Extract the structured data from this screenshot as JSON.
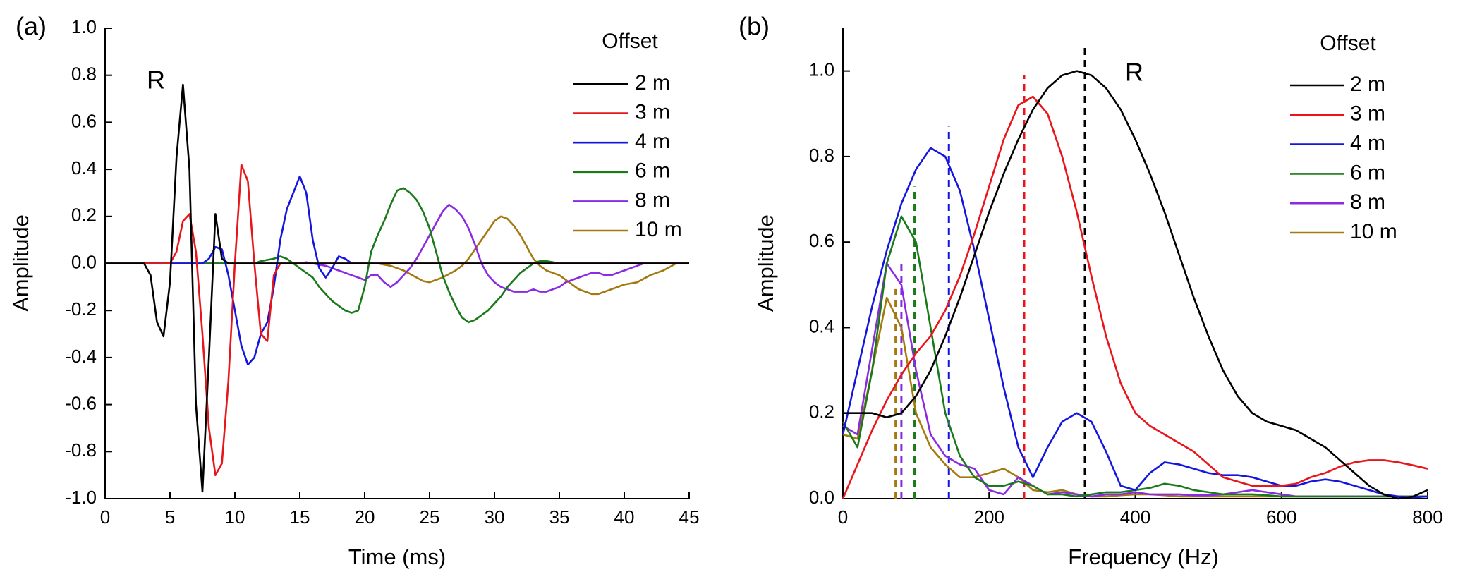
{
  "chart_data": [
    {
      "type": "line",
      "label": "(a)",
      "annotation": "R",
      "xlabel": "Time (ms)",
      "ylabel": "Amplitude",
      "xlim": [
        0,
        45
      ],
      "ylim": [
        -1,
        1
      ],
      "xticks": [
        0,
        5,
        10,
        15,
        20,
        25,
        30,
        35,
        40,
        45
      ],
      "yticks": [
        {
          "value": -1,
          "label": "-1.0"
        },
        -0.8,
        -0.6,
        -0.4,
        -0.2,
        {
          "value": 0,
          "label": "0.0"
        },
        0.2,
        0.4,
        0.6,
        0.8,
        {
          "value": 1,
          "label": "1.0"
        }
      ],
      "legend_title": "Offset",
      "legend": "upper right",
      "x": [
        0,
        0.5,
        1,
        1.5,
        2,
        2.5,
        3,
        3.5,
        4,
        4.5,
        5,
        5.5,
        6,
        6.5,
        7,
        7.5,
        8,
        8.5,
        9,
        9.5,
        10,
        10.5,
        11,
        11.5,
        12,
        12.5,
        13,
        13.5,
        14,
        14.5,
        15,
        15.5,
        16,
        16.5,
        17,
        17.5,
        18,
        18.5,
        19,
        19.5,
        20,
        20.5,
        21,
        21.5,
        22,
        22.5,
        23,
        23.5,
        24,
        24.5,
        25,
        25.5,
        26,
        26.5,
        27,
        27.5,
        28,
        28.5,
        29,
        29.5,
        30,
        30.5,
        31,
        31.5,
        32,
        32.5,
        33,
        33.5,
        34,
        34.5,
        35,
        35.5,
        36,
        36.5,
        37,
        37.5,
        38,
        38.5,
        39,
        39.5,
        40,
        40.5,
        41,
        41.5,
        42,
        42.5,
        43,
        43.5,
        44,
        44.5,
        45
      ],
      "series": [
        {
          "name": "2 m",
          "color": "#000000",
          "values": [
            0,
            0,
            0,
            0,
            0,
            0,
            0,
            -0.05,
            -0.25,
            -0.31,
            -0.08,
            0.45,
            0.76,
            0.4,
            -0.6,
            -0.97,
            -0.4,
            0.21,
            0.02,
            0,
            0,
            0,
            0,
            0,
            0,
            0,
            0,
            0,
            0,
            0,
            0,
            0,
            0,
            0,
            0,
            0,
            0,
            0,
            0,
            0,
            0,
            0,
            0,
            0,
            0,
            0,
            0,
            0,
            0,
            0,
            0,
            0,
            0,
            0,
            0,
            0,
            0,
            0,
            0,
            0,
            0,
            0,
            0,
            0,
            0,
            0,
            0,
            0,
            0,
            0,
            0,
            0,
            0,
            0,
            0,
            0,
            0,
            0,
            0,
            0,
            0,
            0,
            0,
            0,
            0,
            0,
            0,
            0,
            0,
            0,
            0
          ]
        },
        {
          "name": "3 m",
          "color": "#e8161b",
          "values": [
            0,
            0,
            0,
            0,
            0,
            0,
            0,
            0,
            0,
            0,
            0,
            0.05,
            0.18,
            0.21,
            0.05,
            -0.3,
            -0.7,
            -0.9,
            -0.85,
            -0.5,
            0,
            0.42,
            0.35,
            0,
            -0.3,
            -0.33,
            -0.05,
            0,
            0,
            0,
            0,
            0,
            0,
            0,
            0,
            0,
            0,
            0,
            0,
            0,
            0,
            0,
            0,
            0,
            0,
            0,
            0,
            0,
            0,
            0,
            0,
            0,
            0,
            0,
            0,
            0,
            0,
            0,
            0,
            0,
            0,
            0,
            0,
            0,
            0,
            0,
            0,
            0,
            0,
            0,
            0,
            0,
            0,
            0,
            0,
            0,
            0,
            0,
            0,
            0,
            0,
            0,
            0,
            0,
            0,
            0,
            0,
            0,
            0,
            0,
            0
          ]
        },
        {
          "name": "4 m",
          "color": "#1515e0",
          "values": [
            0,
            0,
            0,
            0,
            0,
            0,
            0,
            0,
            0,
            0,
            0,
            0,
            0,
            0,
            0,
            0,
            0.02,
            0.07,
            0.06,
            -0.05,
            -0.2,
            -0.35,
            -0.43,
            -0.4,
            -0.3,
            -0.25,
            -0.1,
            0.1,
            0.23,
            0.3,
            0.37,
            0.3,
            0.1,
            -0.02,
            -0.06,
            -0.02,
            0.03,
            0.02,
            0,
            0,
            0,
            0,
            0,
            0,
            0,
            0,
            0,
            0,
            0,
            0,
            0,
            0,
            0,
            0,
            0,
            0,
            0,
            0,
            0,
            0,
            0,
            0,
            0,
            0,
            0,
            0,
            0,
            0,
            0,
            0,
            0,
            0,
            0,
            0,
            0,
            0,
            0,
            0,
            0,
            0,
            0,
            0,
            0,
            0,
            0,
            0,
            0,
            0,
            0,
            0,
            0
          ]
        },
        {
          "name": "6 m",
          "color": "#1a7a1a",
          "values": [
            0,
            0,
            0,
            0,
            0,
            0,
            0,
            0,
            0,
            0,
            0,
            0,
            0,
            0,
            0,
            0,
            0,
            0,
            0,
            0,
            0,
            0,
            0,
            0,
            0.01,
            0.015,
            0.02,
            0.03,
            0.02,
            0,
            -0.02,
            -0.04,
            -0.06,
            -0.1,
            -0.13,
            -0.16,
            -0.18,
            -0.2,
            -0.21,
            -0.2,
            -0.1,
            0.05,
            0.12,
            0.18,
            0.25,
            0.31,
            0.32,
            0.3,
            0.27,
            0.22,
            0.15,
            0.05,
            -0.05,
            -0.12,
            -0.18,
            -0.23,
            -0.25,
            -0.24,
            -0.22,
            -0.2,
            -0.17,
            -0.14,
            -0.1,
            -0.07,
            -0.04,
            -0.02,
            0,
            0.01,
            0.01,
            0.005,
            0,
            0,
            0,
            0,
            0,
            0,
            0,
            0,
            0,
            0,
            0,
            0,
            0,
            0,
            0,
            0,
            0,
            0,
            0,
            0,
            0
          ]
        },
        {
          "name": "8 m",
          "color": "#8a2be2",
          "values": [
            0,
            0,
            0,
            0,
            0,
            0,
            0,
            0,
            0,
            0,
            0,
            0,
            0,
            0,
            0,
            0,
            0,
            0,
            0,
            0,
            0,
            0,
            0,
            0,
            0,
            0,
            0,
            0,
            0,
            0,
            0,
            0.005,
            0,
            -0.005,
            -0.01,
            -0.02,
            -0.03,
            -0.04,
            -0.05,
            -0.06,
            -0.07,
            -0.05,
            -0.05,
            -0.08,
            -0.1,
            -0.08,
            -0.05,
            -0.02,
            0.02,
            0.07,
            0.12,
            0.17,
            0.22,
            0.25,
            0.23,
            0.2,
            0.15,
            0.08,
            0,
            -0.05,
            -0.08,
            -0.1,
            -0.11,
            -0.12,
            -0.12,
            -0.12,
            -0.11,
            -0.12,
            -0.12,
            -0.11,
            -0.1,
            -0.08,
            -0.07,
            -0.06,
            -0.05,
            -0.04,
            -0.04,
            -0.05,
            -0.05,
            -0.04,
            -0.03,
            -0.02,
            -0.01,
            0,
            0,
            0,
            0,
            0,
            0,
            0,
            0
          ]
        },
        {
          "name": "10 m",
          "color": "#a47a10",
          "values": [
            0,
            0,
            0,
            0,
            0,
            0,
            0,
            0,
            0,
            0,
            0,
            0,
            0,
            0,
            0,
            0,
            0,
            0,
            0,
            0,
            0,
            0,
            0,
            0,
            0,
            0,
            0,
            0,
            0,
            0,
            0,
            0,
            0,
            0,
            0,
            0,
            0,
            0,
            0,
            0,
            0,
            0,
            0,
            -0.005,
            -0.01,
            -0.02,
            -0.03,
            -0.045,
            -0.06,
            -0.075,
            -0.08,
            -0.07,
            -0.06,
            -0.045,
            -0.03,
            -0.01,
            0.02,
            0.06,
            0.1,
            0.14,
            0.18,
            0.2,
            0.19,
            0.16,
            0.12,
            0.07,
            0.02,
            -0.01,
            -0.03,
            -0.04,
            -0.05,
            -0.07,
            -0.09,
            -0.11,
            -0.12,
            -0.13,
            -0.13,
            -0.12,
            -0.11,
            -0.1,
            -0.09,
            -0.085,
            -0.08,
            -0.065,
            -0.05,
            -0.04,
            -0.03,
            -0.015,
            0,
            0,
            0
          ]
        }
      ]
    },
    {
      "type": "line",
      "label": "(b)",
      "annotation": "R",
      "xlabel": "Frequency (Hz)",
      "ylabel": "Amplitude",
      "xlim": [
        0,
        800
      ],
      "ylim": [
        0,
        1.1
      ],
      "xticks": [
        0,
        200,
        400,
        600,
        800
      ],
      "yticks": [
        {
          "value": 0,
          "label": "0.0"
        },
        0.2,
        0.4,
        0.6,
        0.8,
        {
          "value": 1,
          "label": "1.0"
        }
      ],
      "legend_title": "Offset",
      "legend": "upper right",
      "x": [
        0,
        20,
        40,
        60,
        80,
        100,
        120,
        140,
        160,
        180,
        200,
        220,
        240,
        260,
        280,
        300,
        320,
        340,
        360,
        380,
        400,
        420,
        440,
        460,
        480,
        500,
        520,
        540,
        560,
        580,
        600,
        620,
        640,
        660,
        680,
        700,
        720,
        740,
        760,
        780,
        800
      ],
      "series": [
        {
          "name": "2 m",
          "color": "#000000",
          "values": [
            0.2,
            0.2,
            0.2,
            0.19,
            0.2,
            0.24,
            0.3,
            0.38,
            0.47,
            0.57,
            0.67,
            0.76,
            0.84,
            0.91,
            0.96,
            0.99,
            1.0,
            0.99,
            0.96,
            0.91,
            0.84,
            0.76,
            0.67,
            0.57,
            0.47,
            0.38,
            0.3,
            0.24,
            0.2,
            0.18,
            0.17,
            0.16,
            0.14,
            0.12,
            0.09,
            0.06,
            0.03,
            0.01,
            0.0,
            0.005,
            0.02
          ]
        },
        {
          "name": "3 m",
          "color": "#e8161b",
          "values": [
            0.0,
            0.08,
            0.16,
            0.23,
            0.29,
            0.34,
            0.38,
            0.44,
            0.52,
            0.62,
            0.73,
            0.84,
            0.92,
            0.94,
            0.9,
            0.8,
            0.67,
            0.52,
            0.38,
            0.27,
            0.2,
            0.17,
            0.15,
            0.13,
            0.11,
            0.08,
            0.05,
            0.04,
            0.03,
            0.03,
            0.03,
            0.035,
            0.05,
            0.06,
            0.075,
            0.085,
            0.09,
            0.09,
            0.085,
            0.078,
            0.07
          ]
        },
        {
          "name": "4 m",
          "color": "#1515e0",
          "values": [
            0.15,
            0.3,
            0.45,
            0.58,
            0.69,
            0.77,
            0.82,
            0.8,
            0.72,
            0.58,
            0.42,
            0.26,
            0.12,
            0.05,
            0.12,
            0.18,
            0.2,
            0.18,
            0.11,
            0.03,
            0.02,
            0.06,
            0.085,
            0.08,
            0.07,
            0.06,
            0.055,
            0.055,
            0.05,
            0.04,
            0.03,
            0.03,
            0.04,
            0.045,
            0.04,
            0.03,
            0.02,
            0.01,
            0.005,
            0.003,
            0.005
          ]
        },
        {
          "name": "6 m",
          "color": "#1a7a1a",
          "values": [
            0.18,
            0.12,
            0.3,
            0.55,
            0.66,
            0.6,
            0.4,
            0.2,
            0.1,
            0.05,
            0.03,
            0.03,
            0.04,
            0.03,
            0.01,
            0.01,
            0.005,
            0.01,
            0.015,
            0.015,
            0.02,
            0.025,
            0.035,
            0.03,
            0.02,
            0.015,
            0.01,
            0.01,
            0.01,
            0.008,
            0.005,
            0.005,
            0.005,
            0.005,
            0.005,
            0.005,
            0.005,
            0.005,
            0.005,
            0.005,
            0.005
          ]
        },
        {
          "name": "8 m",
          "color": "#8a2be2",
          "values": [
            0.17,
            0.15,
            0.35,
            0.55,
            0.5,
            0.3,
            0.15,
            0.1,
            0.08,
            0.07,
            0.02,
            0.01,
            0.05,
            0.03,
            0.01,
            0.015,
            0.01,
            0.005,
            0.01,
            0.01,
            0.015,
            0.01,
            0.01,
            0.01,
            0.008,
            0.008,
            0.01,
            0.015,
            0.02,
            0.015,
            0.01,
            0.005,
            0.005,
            0.005,
            0.005,
            0.005,
            0.005,
            0.005,
            0.005,
            0.005,
            0.005
          ]
        },
        {
          "name": "10 m",
          "color": "#a47a10",
          "values": [
            0.15,
            0.14,
            0.3,
            0.47,
            0.4,
            0.2,
            0.12,
            0.08,
            0.05,
            0.05,
            0.06,
            0.07,
            0.05,
            0.02,
            0.015,
            0.02,
            0.01,
            0.005,
            0.005,
            0.008,
            0.01,
            0.01,
            0.008,
            0.005,
            0.005,
            0.005,
            0.005,
            0.005,
            0.005,
            0.005,
            0.005,
            0.005,
            0.005,
            0.005,
            0.005,
            0.005,
            0.005,
            0.005,
            0.005,
            0.005,
            0.005
          ]
        }
      ],
      "vlines": [
        {
          "x": 331,
          "y": 1.06,
          "color": "#000000"
        },
        {
          "x": 248,
          "y": 0.99,
          "color": "#e8161b"
        },
        {
          "x": 145,
          "y": 0.87,
          "color": "#1515e0"
        },
        {
          "x": 98,
          "y": 0.73,
          "color": "#1a7a1a"
        },
        {
          "x": 80,
          "y": 0.56,
          "color": "#8a2be2"
        },
        {
          "x": 72,
          "y": 0.49,
          "color": "#a47a10"
        }
      ]
    }
  ]
}
